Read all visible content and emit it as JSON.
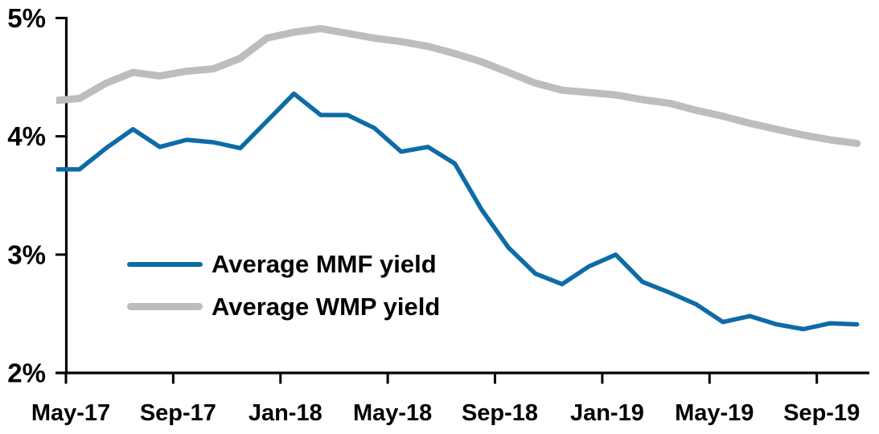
{
  "chart_data": {
    "type": "line",
    "title": "",
    "background": "#FFFFFF",
    "grid": false,
    "axis_color": "#000000",
    "text_color": "#000000",
    "x": [
      "Apr-17",
      "May-17",
      "Jun-17",
      "Jul-17",
      "Aug-17",
      "Sep-17",
      "Oct-17",
      "Nov-17",
      "Dec-17",
      "Jan-18",
      "Feb-18",
      "Mar-18",
      "Apr-18",
      "May-18",
      "Jun-18",
      "Jul-18",
      "Aug-18",
      "Sep-18",
      "Oct-18",
      "Nov-18",
      "Dec-18",
      "Jan-19",
      "Feb-19",
      "Mar-19",
      "Apr-19",
      "May-19",
      "Jun-19",
      "Jul-19",
      "Aug-19",
      "Sep-19",
      "Oct-19"
    ],
    "series": [
      {
        "name": "Average MMF yield",
        "color": "#0E6BA6",
        "stroke_width": 5.5,
        "values": [
          3.72,
          3.72,
          3.9,
          4.06,
          3.91,
          3.97,
          3.95,
          3.9,
          4.13,
          4.36,
          4.18,
          4.18,
          4.07,
          3.87,
          3.91,
          3.77,
          3.38,
          3.06,
          2.84,
          2.75,
          2.9,
          3.0,
          2.77,
          2.68,
          2.58,
          2.43,
          2.48,
          2.41,
          2.37,
          2.42,
          2.41
        ]
      },
      {
        "name": "Average WMP yield",
        "color": "#BDBDBD",
        "stroke_width": 9,
        "values": [
          4.3,
          4.32,
          4.45,
          4.54,
          4.51,
          4.55,
          4.57,
          4.66,
          4.83,
          4.88,
          4.91,
          4.87,
          4.83,
          4.8,
          4.76,
          4.7,
          4.63,
          4.54,
          4.45,
          4.39,
          4.37,
          4.35,
          4.31,
          4.28,
          4.22,
          4.17,
          4.11,
          4.06,
          4.01,
          3.97,
          3.94
        ]
      }
    ],
    "y_axis": {
      "unit": "percent",
      "min": 2,
      "max": 5,
      "tick_values": [
        5,
        4,
        3,
        2
      ],
      "tick_labels": [
        "5%",
        "4%",
        "3%",
        "2%"
      ]
    },
    "x_axis": {
      "tick_labels": [
        "May-17",
        "Sep-17",
        "Jan-18",
        "May-18",
        "Sep-18",
        "Jan-19",
        "May-19",
        "Sep-19"
      ],
      "first_tick_month": "May-17",
      "months_between_ticks": 4
    },
    "legend": {
      "position": "inside middle-left",
      "items": [
        "Average MMF yield",
        "Average WMP yield"
      ]
    }
  }
}
